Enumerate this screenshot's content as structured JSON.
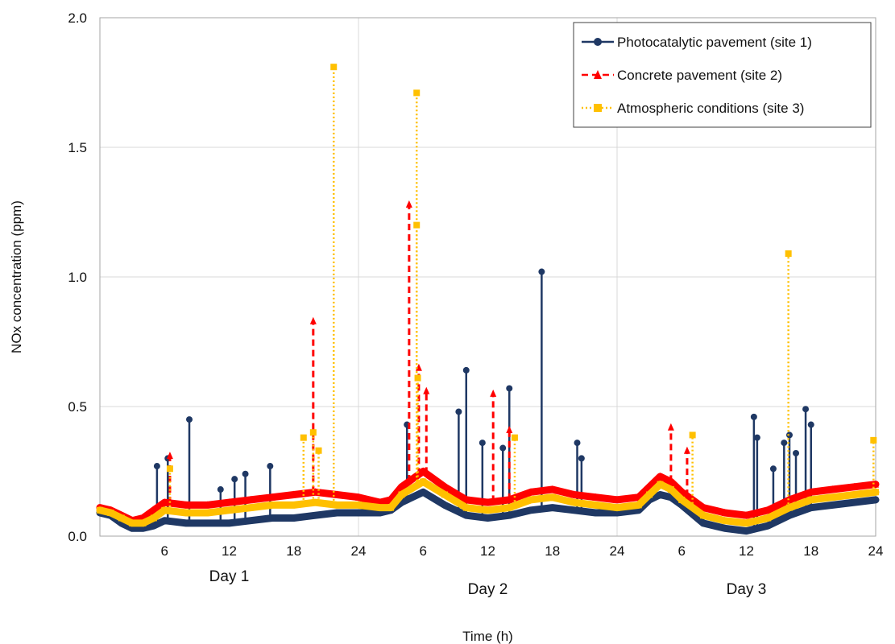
{
  "chart_data": {
    "type": "line",
    "title": "",
    "xlabel": "Time (h)",
    "ylabel": "NOx concentration (ppm)",
    "ylim": [
      0,
      2.0
    ],
    "xlim": [
      0,
      72
    ],
    "grid": true,
    "legend_position": "top-right",
    "y_ticks": [
      "0.0",
      "0.5",
      "1.0",
      "1.5",
      "2.0"
    ],
    "x_ticks": [
      "6",
      "12",
      "18",
      "24",
      "6",
      "12",
      "18",
      "24",
      "6",
      "12",
      "18",
      "24"
    ],
    "day_labels": [
      "Day 1",
      "Day 2",
      "Day 3"
    ],
    "series": [
      {
        "name": "Photocatalytic pavement (site 1)",
        "color": "#1f3864",
        "marker": "circle",
        "style": "solid",
        "baseline": [
          [
            0,
            0.09
          ],
          [
            1,
            0.08
          ],
          [
            2,
            0.05
          ],
          [
            3,
            0.03
          ],
          [
            4,
            0.03
          ],
          [
            5,
            0.04
          ],
          [
            6,
            0.06
          ],
          [
            8,
            0.05
          ],
          [
            10,
            0.05
          ],
          [
            12,
            0.05
          ],
          [
            14,
            0.06
          ],
          [
            16,
            0.07
          ],
          [
            18,
            0.07
          ],
          [
            20,
            0.08
          ],
          [
            22,
            0.09
          ],
          [
            24,
            0.09
          ],
          [
            26,
            0.09
          ],
          [
            27,
            0.1
          ],
          [
            28,
            0.13
          ],
          [
            30,
            0.17
          ],
          [
            32,
            0.12
          ],
          [
            34,
            0.08
          ],
          [
            36,
            0.07
          ],
          [
            38,
            0.08
          ],
          [
            40,
            0.1
          ],
          [
            42,
            0.11
          ],
          [
            44,
            0.1
          ],
          [
            46,
            0.09
          ],
          [
            48,
            0.09
          ],
          [
            50,
            0.1
          ],
          [
            51,
            0.14
          ],
          [
            52,
            0.16
          ],
          [
            53,
            0.15
          ],
          [
            54,
            0.12
          ],
          [
            56,
            0.05
          ],
          [
            58,
            0.03
          ],
          [
            60,
            0.02
          ],
          [
            62,
            0.04
          ],
          [
            64,
            0.08
          ],
          [
            66,
            0.11
          ],
          [
            68,
            0.12
          ],
          [
            70,
            0.13
          ],
          [
            72,
            0.14
          ]
        ],
        "peaks": [
          [
            5.3,
            0.27
          ],
          [
            6.3,
            0.3
          ],
          [
            8.3,
            0.45
          ],
          [
            11.2,
            0.18
          ],
          [
            12.5,
            0.22
          ],
          [
            13.5,
            0.24
          ],
          [
            15.8,
            0.27
          ],
          [
            28.5,
            0.43
          ],
          [
            33.3,
            0.48
          ],
          [
            34,
            0.64
          ],
          [
            35.5,
            0.36
          ],
          [
            37.4,
            0.34
          ],
          [
            38,
            0.57
          ],
          [
            41,
            1.02
          ],
          [
            44.3,
            0.36
          ],
          [
            44.7,
            0.3
          ],
          [
            60.7,
            0.46
          ],
          [
            61,
            0.38
          ],
          [
            62.5,
            0.26
          ],
          [
            63.5,
            0.36
          ],
          [
            64,
            0.39
          ],
          [
            64.6,
            0.32
          ],
          [
            65.5,
            0.49
          ],
          [
            66,
            0.43
          ]
        ]
      },
      {
        "name": "Concrete pavement (site 2)",
        "color": "#ff0000",
        "marker": "triangle",
        "style": "dashed",
        "baseline": [
          [
            0,
            0.11
          ],
          [
            1,
            0.1
          ],
          [
            2,
            0.08
          ],
          [
            3,
            0.06
          ],
          [
            4,
            0.07
          ],
          [
            5,
            0.1
          ],
          [
            6,
            0.13
          ],
          [
            8,
            0.12
          ],
          [
            10,
            0.12
          ],
          [
            12,
            0.13
          ],
          [
            14,
            0.14
          ],
          [
            16,
            0.15
          ],
          [
            18,
            0.16
          ],
          [
            20,
            0.17
          ],
          [
            22,
            0.16
          ],
          [
            24,
            0.15
          ],
          [
            26,
            0.13
          ],
          [
            27,
            0.14
          ],
          [
            28,
            0.19
          ],
          [
            30,
            0.25
          ],
          [
            32,
            0.19
          ],
          [
            34,
            0.14
          ],
          [
            36,
            0.13
          ],
          [
            38,
            0.14
          ],
          [
            40,
            0.17
          ],
          [
            42,
            0.18
          ],
          [
            44,
            0.16
          ],
          [
            46,
            0.15
          ],
          [
            48,
            0.14
          ],
          [
            50,
            0.15
          ],
          [
            51,
            0.19
          ],
          [
            52,
            0.23
          ],
          [
            53,
            0.21
          ],
          [
            54,
            0.17
          ],
          [
            56,
            0.11
          ],
          [
            58,
            0.09
          ],
          [
            60,
            0.08
          ],
          [
            62,
            0.1
          ],
          [
            64,
            0.14
          ],
          [
            66,
            0.17
          ],
          [
            68,
            0.18
          ],
          [
            70,
            0.19
          ],
          [
            72,
            0.2
          ]
        ],
        "peaks": [
          [
            6.5,
            0.31
          ],
          [
            19.8,
            0.83
          ],
          [
            28.7,
            1.28
          ],
          [
            29.6,
            0.65
          ],
          [
            30.3,
            0.56
          ],
          [
            36.5,
            0.55
          ],
          [
            38,
            0.41
          ],
          [
            53,
            0.42
          ],
          [
            54.5,
            0.33
          ]
        ]
      },
      {
        "name": "Atmospheric conditions (site 3)",
        "color": "#ffc000",
        "marker": "square",
        "style": "dotted",
        "baseline": [
          [
            0,
            0.1
          ],
          [
            1,
            0.09
          ],
          [
            2,
            0.07
          ],
          [
            3,
            0.05
          ],
          [
            4,
            0.05
          ],
          [
            5,
            0.07
          ],
          [
            6,
            0.1
          ],
          [
            8,
            0.09
          ],
          [
            10,
            0.09
          ],
          [
            12,
            0.1
          ],
          [
            14,
            0.11
          ],
          [
            16,
            0.12
          ],
          [
            18,
            0.12
          ],
          [
            20,
            0.13
          ],
          [
            22,
            0.12
          ],
          [
            24,
            0.12
          ],
          [
            26,
            0.11
          ],
          [
            27,
            0.11
          ],
          [
            28,
            0.16
          ],
          [
            30,
            0.21
          ],
          [
            32,
            0.16
          ],
          [
            34,
            0.11
          ],
          [
            36,
            0.1
          ],
          [
            38,
            0.11
          ],
          [
            40,
            0.14
          ],
          [
            42,
            0.15
          ],
          [
            44,
            0.13
          ],
          [
            46,
            0.12
          ],
          [
            48,
            0.11
          ],
          [
            50,
            0.12
          ],
          [
            51,
            0.16
          ],
          [
            52,
            0.2
          ],
          [
            53,
            0.18
          ],
          [
            54,
            0.14
          ],
          [
            56,
            0.08
          ],
          [
            58,
            0.06
          ],
          [
            60,
            0.05
          ],
          [
            62,
            0.07
          ],
          [
            64,
            0.11
          ],
          [
            66,
            0.14
          ],
          [
            68,
            0.15
          ],
          [
            70,
            0.16
          ],
          [
            72,
            0.17
          ]
        ],
        "peaks": [
          [
            6.5,
            0.26
          ],
          [
            18.9,
            0.38
          ],
          [
            19.8,
            0.4
          ],
          [
            20.3,
            0.33
          ],
          [
            21.7,
            1.81
          ],
          [
            29.4,
            1.71
          ],
          [
            29.4,
            1.2
          ],
          [
            29.5,
            0.61
          ],
          [
            38.5,
            0.38
          ],
          [
            55,
            0.39
          ],
          [
            63.9,
            1.09
          ],
          [
            71.8,
            0.37
          ]
        ]
      }
    ]
  }
}
